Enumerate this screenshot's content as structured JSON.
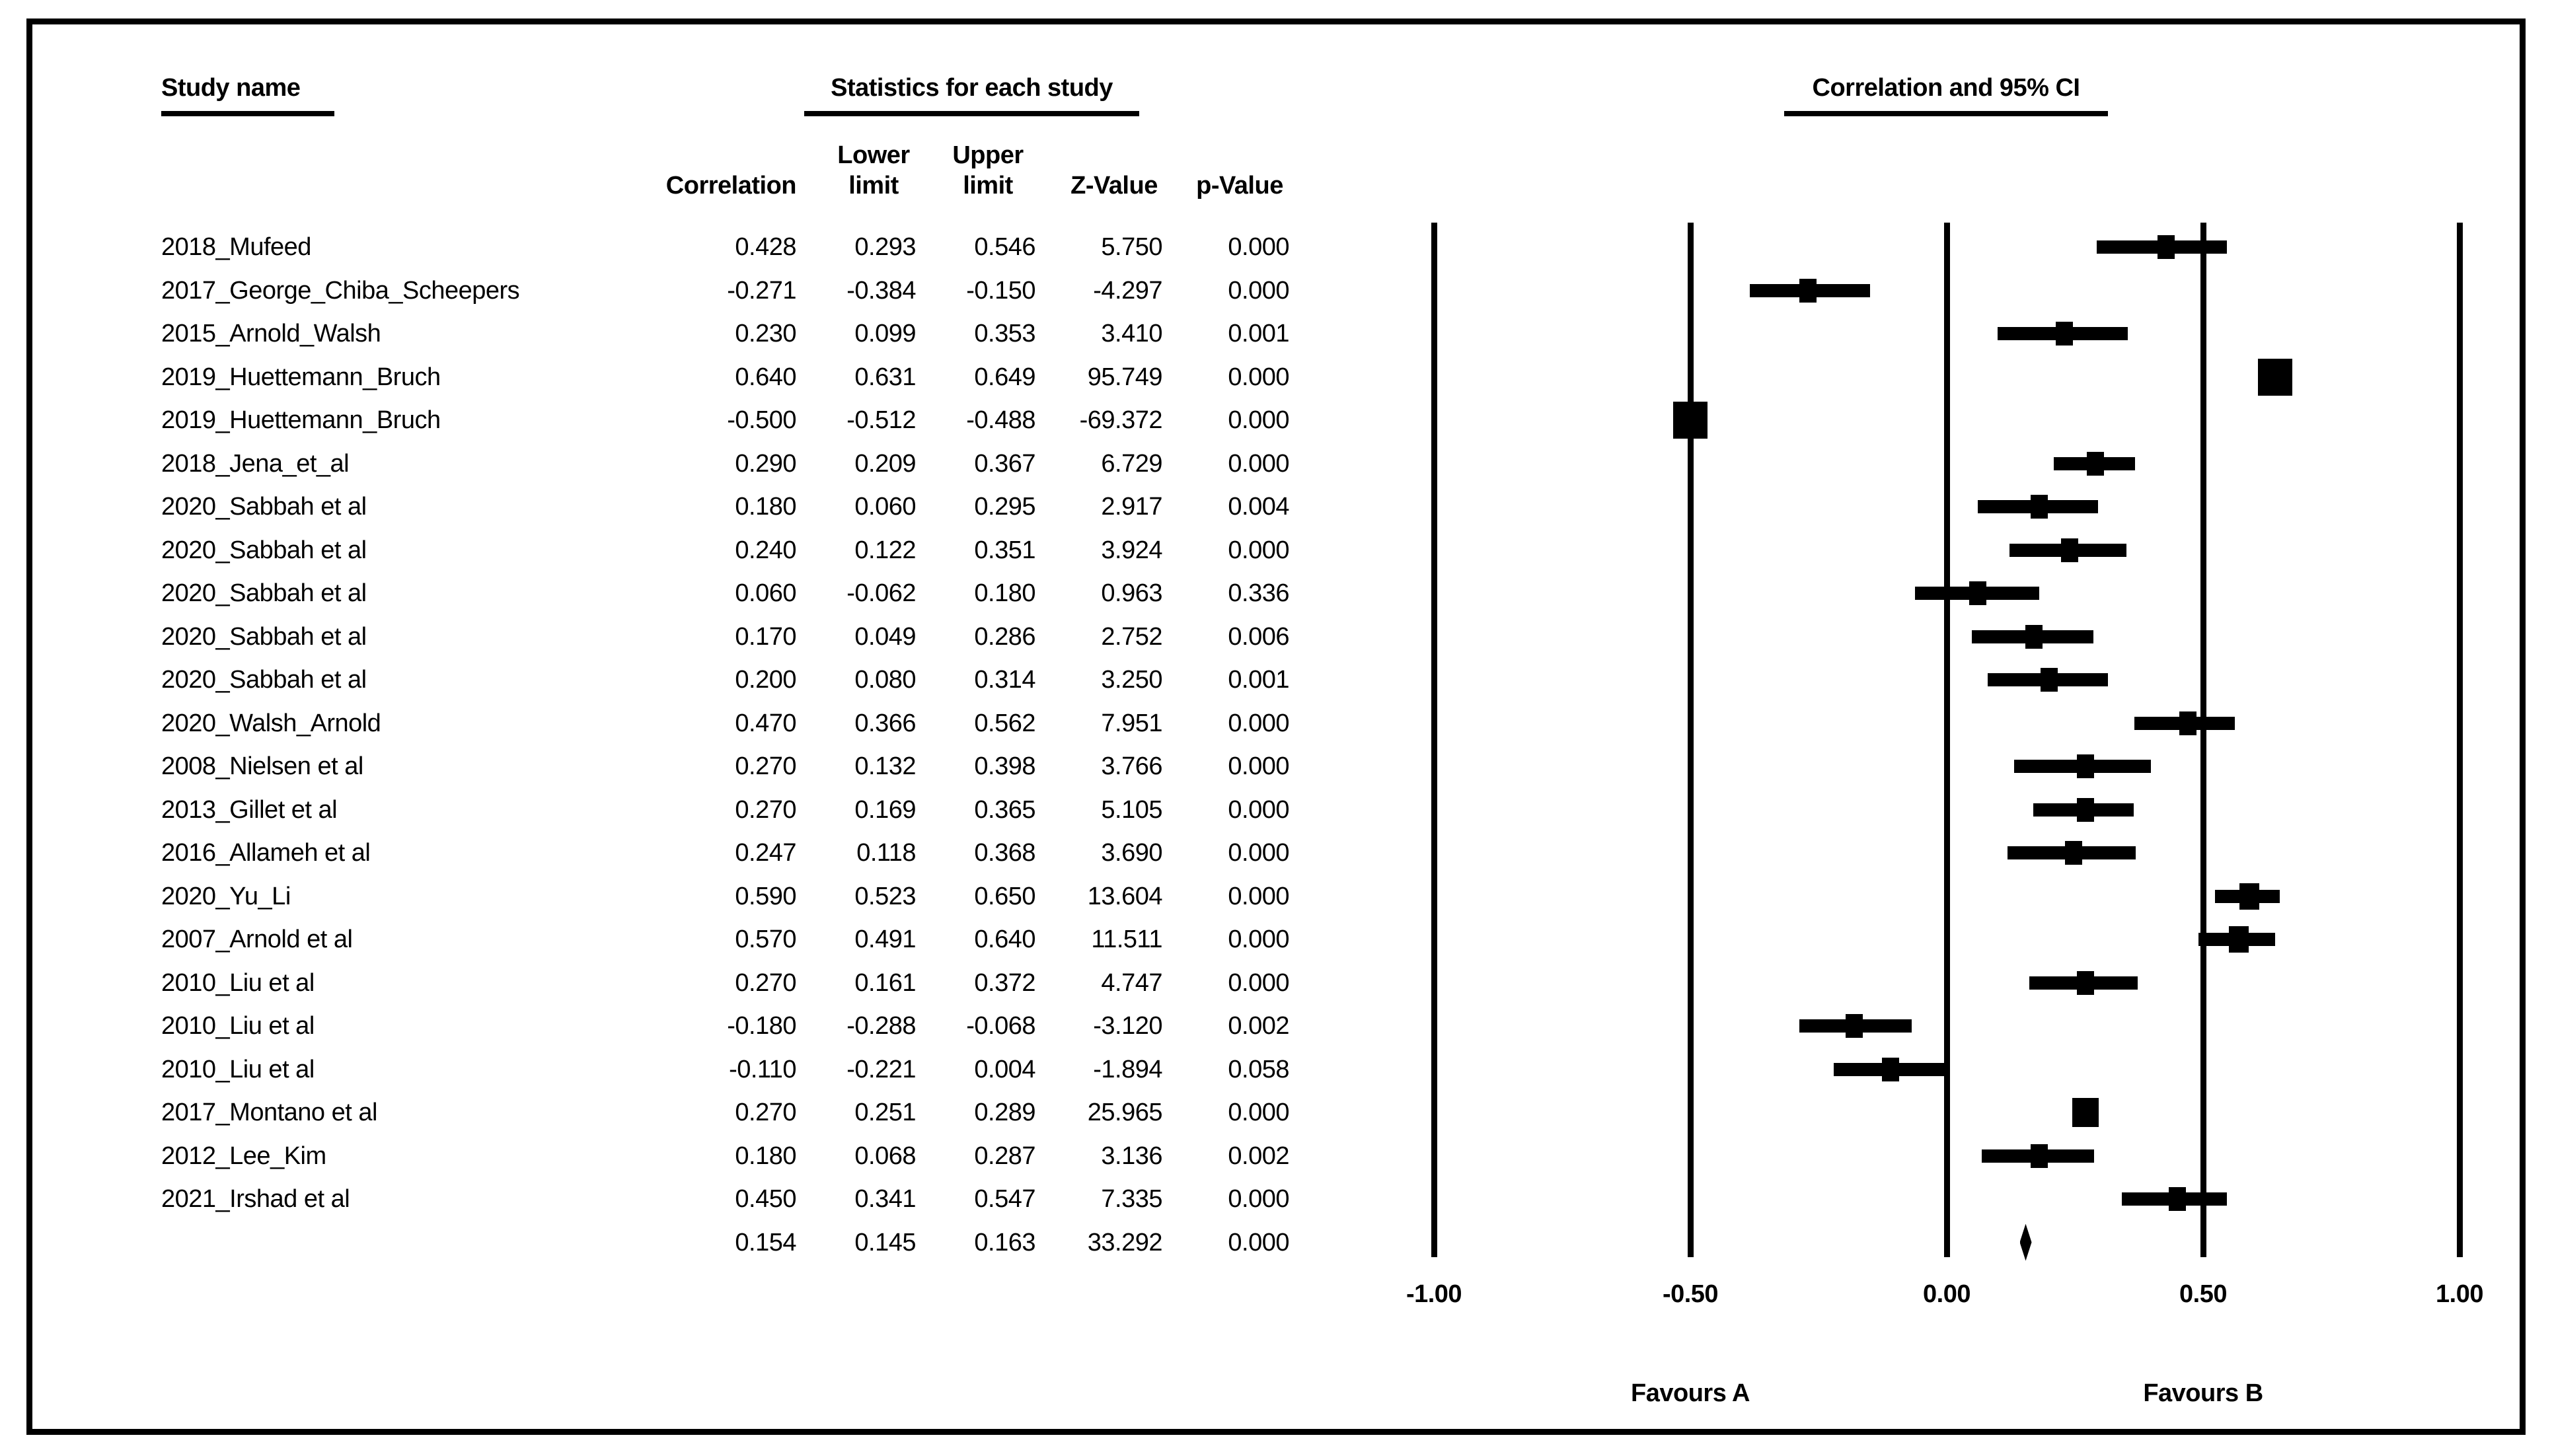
{
  "colors": {
    "ink": "#000000",
    "background": "#ffffff"
  },
  "header": {
    "study_name": "Study name",
    "stats": "Statistics for each study",
    "plot": "Correlation and 95% CI",
    "columns": {
      "correlation": "Correlation",
      "lower_line1": "Lower",
      "lower_line2": "limit",
      "upper_line1": "Upper",
      "upper_line2": "limit",
      "z": "Z-Value",
      "p": "p-Value"
    }
  },
  "chart_data": {
    "type": "scatter",
    "variant": "forest-plot",
    "title": "Correlation and 95% CI",
    "xlabel": "Correlation",
    "xlim": [
      -1.0,
      1.0
    ],
    "grid": "vertical-reference-lines",
    "x_ticks": [
      "-1.00",
      "-0.50",
      "0.00",
      "0.50",
      "1.00"
    ],
    "favours_left": "Favours A",
    "favours_right": "Favours B",
    "studies": [
      {
        "name": "2018_Mufeed",
        "correlation": "0.428",
        "lower": "0.293",
        "upper": "0.546",
        "z": "5.750",
        "p": "0.000",
        "size": 26
      },
      {
        "name": "2017_George_Chiba_Scheepers",
        "correlation": "-0.271",
        "lower": "-0.384",
        "upper": "-0.150",
        "z": "-4.297",
        "p": "0.000",
        "size": 26
      },
      {
        "name": "2015_Arnold_Walsh",
        "correlation": "0.230",
        "lower": "0.099",
        "upper": "0.353",
        "z": "3.410",
        "p": "0.001",
        "size": 26
      },
      {
        "name": "2019_Huettemann_Bruch",
        "correlation": "0.640",
        "lower": "0.631",
        "upper": "0.649",
        "z": "95.749",
        "p": "0.000",
        "size": 52
      },
      {
        "name": "2019_Huettemann_Bruch",
        "correlation": "-0.500",
        "lower": "-0.512",
        "upper": "-0.488",
        "z": "-69.372",
        "p": "0.000",
        "size": 52
      },
      {
        "name": "2018_Jena_et_al",
        "correlation": "0.290",
        "lower": "0.209",
        "upper": "0.367",
        "z": "6.729",
        "p": "0.000",
        "size": 26
      },
      {
        "name": "2020_Sabbah et al",
        "correlation": "0.180",
        "lower": "0.060",
        "upper": "0.295",
        "z": "2.917",
        "p": "0.004",
        "size": 26
      },
      {
        "name": "2020_Sabbah et al",
        "correlation": "0.240",
        "lower": "0.122",
        "upper": "0.351",
        "z": "3.924",
        "p": "0.000",
        "size": 26
      },
      {
        "name": "2020_Sabbah et al",
        "correlation": "0.060",
        "lower": "-0.062",
        "upper": "0.180",
        "z": "0.963",
        "p": "0.336",
        "size": 26
      },
      {
        "name": "2020_Sabbah et al",
        "correlation": "0.170",
        "lower": "0.049",
        "upper": "0.286",
        "z": "2.752",
        "p": "0.006",
        "size": 26
      },
      {
        "name": "2020_Sabbah et al",
        "correlation": "0.200",
        "lower": "0.080",
        "upper": "0.314",
        "z": "3.250",
        "p": "0.001",
        "size": 26
      },
      {
        "name": "2020_Walsh_Arnold",
        "correlation": "0.470",
        "lower": "0.366",
        "upper": "0.562",
        "z": "7.951",
        "p": "0.000",
        "size": 26
      },
      {
        "name": "2008_Nielsen et al",
        "correlation": "0.270",
        "lower": "0.132",
        "upper": "0.398",
        "z": "3.766",
        "p": "0.000",
        "size": 26
      },
      {
        "name": "2013_Gillet et al",
        "correlation": "0.270",
        "lower": "0.169",
        "upper": "0.365",
        "z": "5.105",
        "p": "0.000",
        "size": 26
      },
      {
        "name": "2016_Allameh et al",
        "correlation": "0.247",
        "lower": "0.118",
        "upper": "0.368",
        "z": "3.690",
        "p": "0.000",
        "size": 26
      },
      {
        "name": "2020_Yu_Li",
        "correlation": "0.590",
        "lower": "0.523",
        "upper": "0.650",
        "z": "13.604",
        "p": "0.000",
        "size": 30
      },
      {
        "name": "2007_Arnold et al",
        "correlation": "0.570",
        "lower": "0.491",
        "upper": "0.640",
        "z": "11.511",
        "p": "0.000",
        "size": 30
      },
      {
        "name": "2010_Liu et al",
        "correlation": "0.270",
        "lower": "0.161",
        "upper": "0.372",
        "z": "4.747",
        "p": "0.000",
        "size": 26
      },
      {
        "name": "2010_Liu et al",
        "correlation": "-0.180",
        "lower": "-0.288",
        "upper": "-0.068",
        "z": "-3.120",
        "p": "0.002",
        "size": 26
      },
      {
        "name": "2010_Liu et al",
        "correlation": "-0.110",
        "lower": "-0.221",
        "upper": "0.004",
        "z": "-1.894",
        "p": "0.058",
        "size": 26
      },
      {
        "name": "2017_Montano et al",
        "correlation": "0.270",
        "lower": "0.251",
        "upper": "0.289",
        "z": "25.965",
        "p": "0.000",
        "size": 40
      },
      {
        "name": "2012_Lee_Kim",
        "correlation": "0.180",
        "lower": "0.068",
        "upper": "0.287",
        "z": "3.136",
        "p": "0.002",
        "size": 26
      },
      {
        "name": "2021_Irshad et al",
        "correlation": "0.450",
        "lower": "0.341",
        "upper": "0.547",
        "z": "7.335",
        "p": "0.000",
        "size": 26
      },
      {
        "name": "",
        "correlation": "0.154",
        "lower": "0.145",
        "upper": "0.163",
        "z": "33.292",
        "p": "0.000",
        "summary": true
      }
    ]
  }
}
